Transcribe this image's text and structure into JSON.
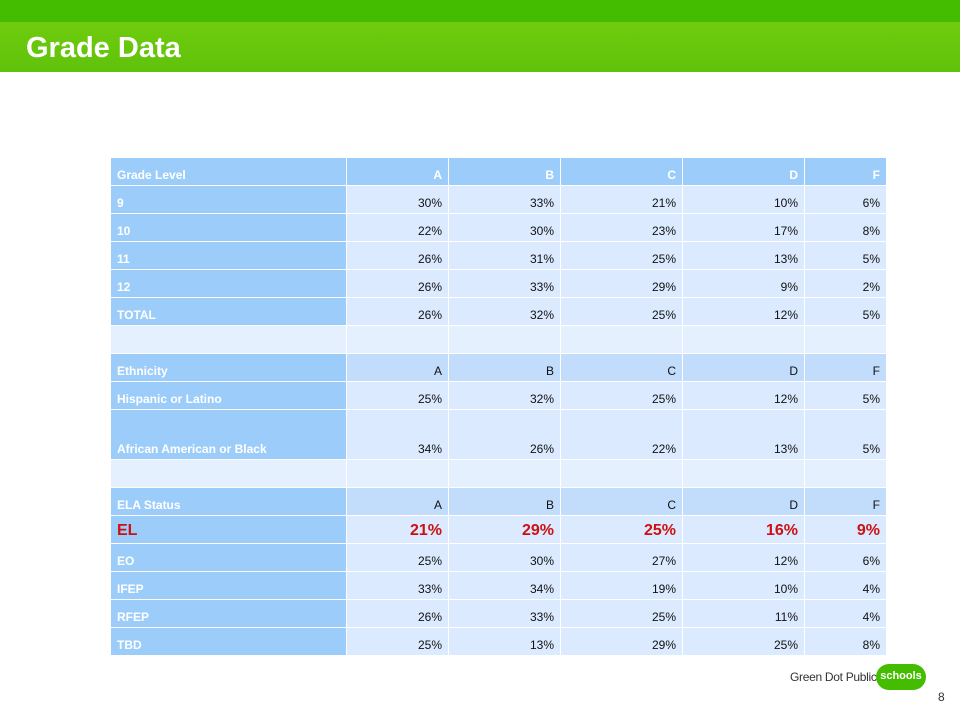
{
  "slide": {
    "title": "Grade Data",
    "page_number": "8",
    "logo_text": "Green Dot Public",
    "logo_highlight": "schools"
  },
  "colors": {
    "header_green": "#5fc20a",
    "table_header_blue": "#9ccdfa",
    "cell_blue": "#dbeafe",
    "el_red": "#cc1111"
  },
  "table": {
    "rows": [
      {
        "label": "Grade Level",
        "cells": [
          "A",
          "B",
          "C",
          "D",
          "F"
        ]
      },
      {
        "label": "9",
        "cells": [
          "30%",
          "33%",
          "21%",
          "10%",
          "6%"
        ]
      },
      {
        "label": "10",
        "cells": [
          "22%",
          "30%",
          "23%",
          "17%",
          "8%"
        ]
      },
      {
        "label": "11",
        "cells": [
          "26%",
          "31%",
          "25%",
          "13%",
          "5%"
        ]
      },
      {
        "label": "12",
        "cells": [
          "26%",
          "33%",
          "29%",
          "9%",
          "2%"
        ]
      },
      {
        "label": "TOTAL",
        "cells": [
          "26%",
          "32%",
          "25%",
          "12%",
          "5%"
        ]
      },
      {
        "label": "",
        "cells": [
          "",
          "",
          "",
          "",
          ""
        ]
      },
      {
        "label": "Ethnicity",
        "cells": [
          "A",
          "B",
          "C",
          "D",
          "F"
        ]
      },
      {
        "label": "Hispanic or Latino",
        "cells": [
          "25%",
          "32%",
          "25%",
          "12%",
          "5%"
        ]
      },
      {
        "label": "African American or Black",
        "cells": [
          "34%",
          "26%",
          "22%",
          "13%",
          "5%"
        ]
      },
      {
        "label": "",
        "cells": [
          "",
          "",
          "",
          "",
          ""
        ]
      },
      {
        "label": "ELA Status",
        "cells": [
          "A",
          "B",
          "C",
          "D",
          "F"
        ]
      },
      {
        "label": "EL",
        "cells": [
          "21%",
          "29%",
          "25%",
          "16%",
          "9%"
        ]
      },
      {
        "label": "EO",
        "cells": [
          "25%",
          "30%",
          "27%",
          "12%",
          "6%"
        ]
      },
      {
        "label": "IFEP",
        "cells": [
          "33%",
          "34%",
          "19%",
          "10%",
          "4%"
        ]
      },
      {
        "label": "RFEP",
        "cells": [
          "26%",
          "33%",
          "25%",
          "11%",
          "4%"
        ]
      },
      {
        "label": "TBD",
        "cells": [
          "25%",
          "13%",
          "29%",
          "25%",
          "8%"
        ]
      }
    ]
  }
}
